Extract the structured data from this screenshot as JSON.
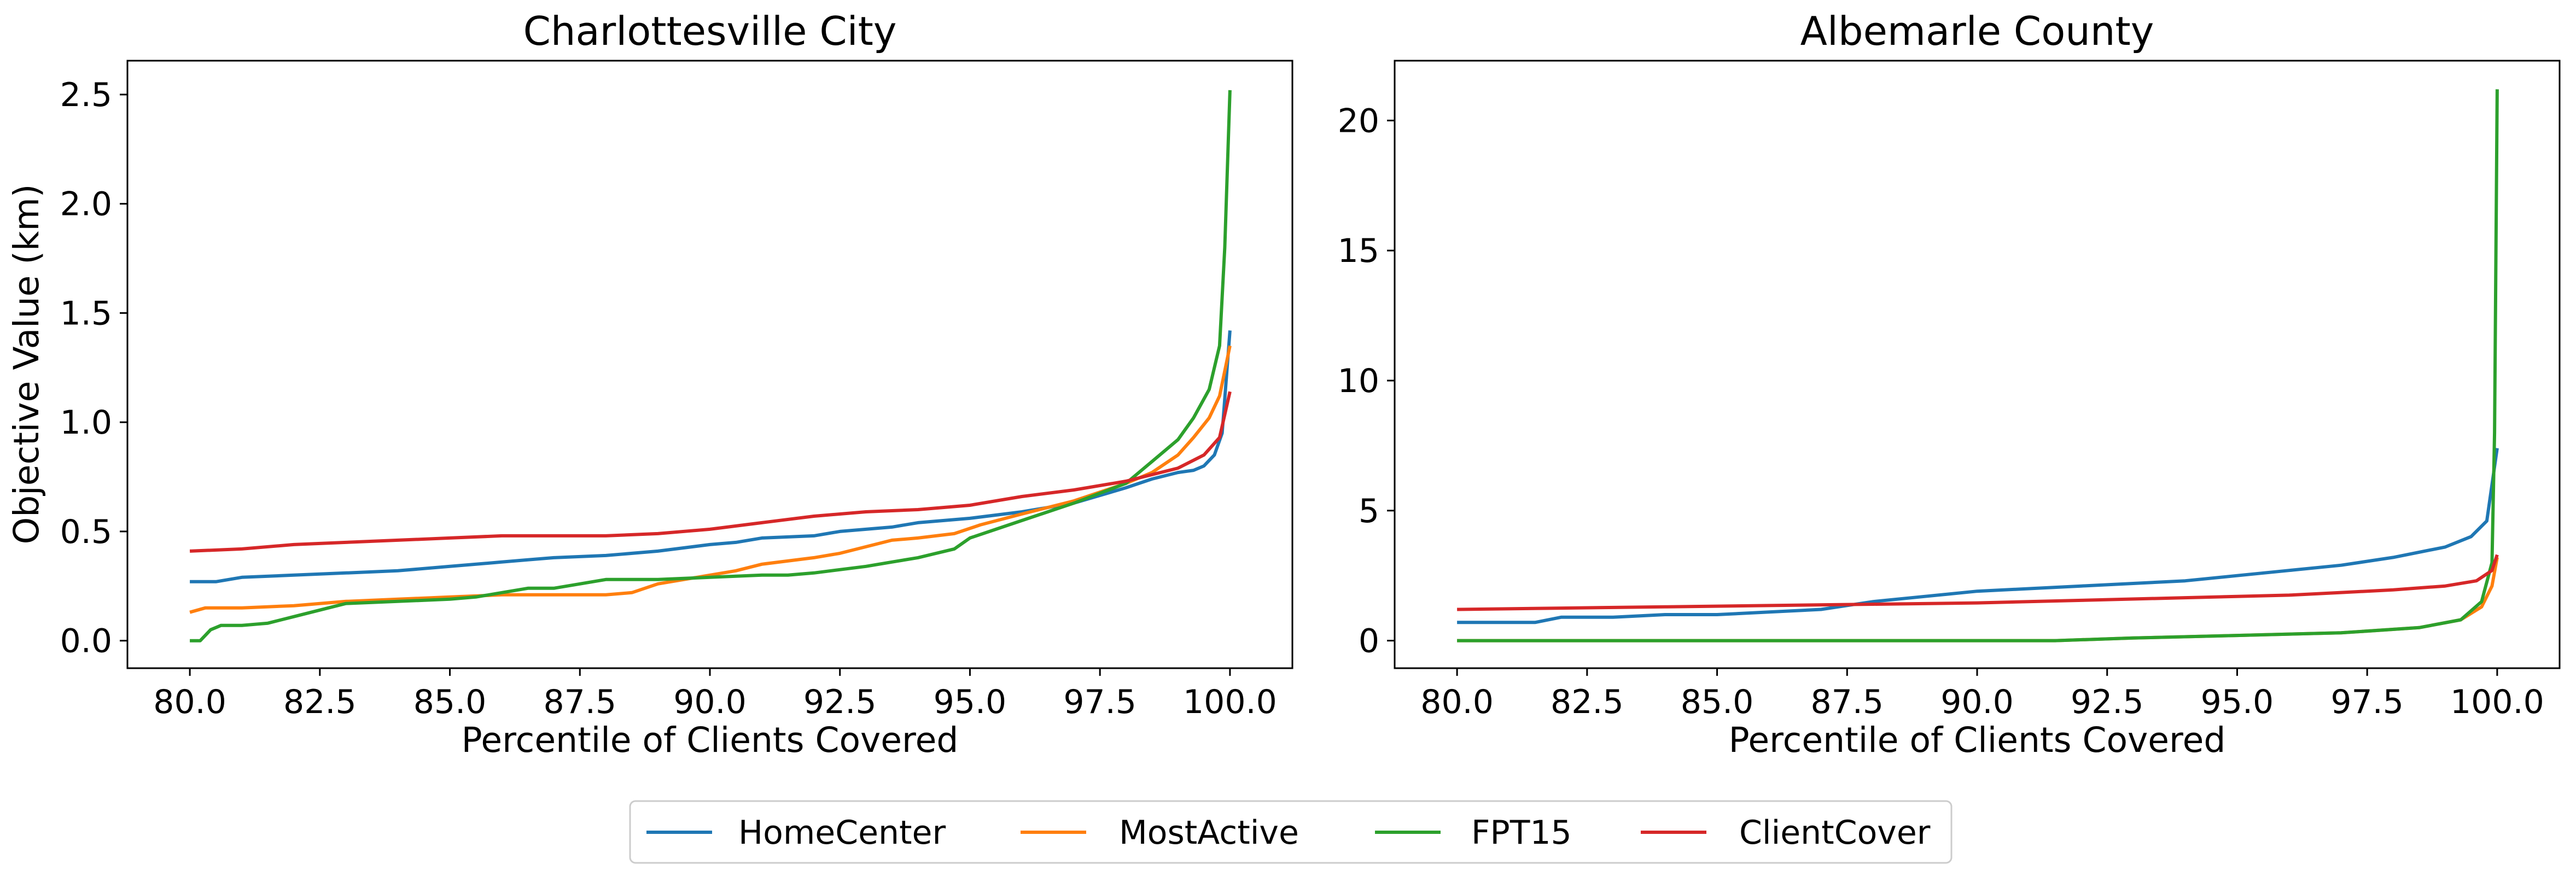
{
  "chart_data": [
    {
      "type": "line",
      "title": "Charlottesville City",
      "xlabel": "Percentile of Clients Covered",
      "ylabel": "Objective Value (km)",
      "xlim": [
        78.8,
        101.2
      ],
      "ylim": [
        -0.126,
        2.655
      ],
      "xticks": [
        80.0,
        82.5,
        85.0,
        87.5,
        90.0,
        92.5,
        95.0,
        97.5,
        100.0
      ],
      "xtick_labels": [
        "80.0",
        "82.5",
        "85.0",
        "87.5",
        "90.0",
        "92.5",
        "95.0",
        "97.5",
        "100.0"
      ],
      "yticks": [
        0.0,
        0.5,
        1.0,
        1.5,
        2.0,
        2.5
      ],
      "ytick_labels": [
        "0.0",
        "0.5",
        "1.0",
        "1.5",
        "2.0",
        "2.5"
      ],
      "grid": false,
      "series": [
        {
          "name": "HomeCenter",
          "color": "#1f77b4",
          "x": [
            80,
            80.5,
            81,
            82,
            83,
            84,
            85,
            86,
            86.5,
            87,
            88,
            89,
            90,
            90.5,
            91,
            92,
            92.5,
            93,
            93.5,
            94,
            95,
            96,
            97,
            98,
            98.5,
            99,
            99.3,
            99.5,
            99.7,
            99.85,
            100
          ],
          "y": [
            0.27,
            0.27,
            0.29,
            0.3,
            0.31,
            0.32,
            0.34,
            0.36,
            0.37,
            0.38,
            0.39,
            0.41,
            0.44,
            0.45,
            0.47,
            0.48,
            0.5,
            0.51,
            0.52,
            0.54,
            0.56,
            0.59,
            0.63,
            0.7,
            0.74,
            0.77,
            0.78,
            0.8,
            0.85,
            0.95,
            1.42
          ]
        },
        {
          "name": "MostActive",
          "color": "#ff7f0e",
          "x": [
            80,
            80.3,
            81,
            82,
            82.5,
            83,
            84,
            85,
            86,
            87,
            88,
            88.5,
            89,
            90,
            90.5,
            91,
            92,
            92.5,
            93,
            93.5,
            94,
            94.7,
            95.2,
            96,
            97,
            98,
            98.5,
            99,
            99.3,
            99.6,
            99.8,
            100
          ],
          "y": [
            0.13,
            0.15,
            0.15,
            0.16,
            0.17,
            0.18,
            0.19,
            0.2,
            0.21,
            0.21,
            0.21,
            0.22,
            0.26,
            0.3,
            0.32,
            0.35,
            0.38,
            0.4,
            0.43,
            0.46,
            0.47,
            0.49,
            0.53,
            0.58,
            0.64,
            0.72,
            0.77,
            0.85,
            0.93,
            1.02,
            1.12,
            1.35
          ]
        },
        {
          "name": "FPT15",
          "color": "#2ca02c",
          "x": [
            80,
            80.2,
            80.4,
            80.6,
            81,
            81.5,
            82,
            82.5,
            83,
            84,
            85,
            85.5,
            86,
            86.5,
            87,
            88,
            89,
            90,
            91,
            91.5,
            92,
            93,
            93.5,
            94,
            94.7,
            95,
            95.5,
            96,
            97,
            98,
            98.5,
            99,
            99.3,
            99.6,
            99.8,
            99.9,
            100
          ],
          "y": [
            0.0,
            0.0,
            0.05,
            0.07,
            0.07,
            0.08,
            0.11,
            0.14,
            0.17,
            0.18,
            0.19,
            0.2,
            0.22,
            0.24,
            0.24,
            0.28,
            0.28,
            0.29,
            0.3,
            0.3,
            0.31,
            0.34,
            0.36,
            0.38,
            0.42,
            0.47,
            0.51,
            0.55,
            0.63,
            0.72,
            0.82,
            0.92,
            1.02,
            1.15,
            1.35,
            1.8,
            2.52
          ]
        },
        {
          "name": "ClientCover",
          "color": "#d62728",
          "x": [
            80,
            81,
            82,
            83,
            84,
            85,
            86,
            87,
            88,
            89,
            90,
            91,
            92,
            93,
            94,
            95,
            96,
            97,
            98,
            99,
            99.5,
            99.8,
            100
          ],
          "y": [
            0.41,
            0.42,
            0.44,
            0.45,
            0.46,
            0.47,
            0.48,
            0.48,
            0.48,
            0.49,
            0.51,
            0.54,
            0.57,
            0.59,
            0.6,
            0.62,
            0.66,
            0.69,
            0.73,
            0.79,
            0.85,
            0.93,
            1.14
          ]
        }
      ]
    },
    {
      "type": "line",
      "title": "Albemarle County",
      "xlabel": "Percentile of Clients Covered",
      "ylabel": "",
      "xlim": [
        78.8,
        101.2
      ],
      "ylim": [
        -1.06,
        22.3
      ],
      "xticks": [
        80.0,
        82.5,
        85.0,
        87.5,
        90.0,
        92.5,
        95.0,
        97.5,
        100.0
      ],
      "xtick_labels": [
        "80.0",
        "82.5",
        "85.0",
        "87.5",
        "90.0",
        "92.5",
        "95.0",
        "97.5",
        "100.0"
      ],
      "yticks": [
        0,
        5,
        10,
        15,
        20
      ],
      "ytick_labels": [
        "0",
        "5",
        "10",
        "15",
        "20"
      ],
      "grid": false,
      "series": [
        {
          "name": "HomeCenter",
          "color": "#1f77b4",
          "x": [
            80,
            81.5,
            82,
            83,
            84,
            85,
            86,
            87,
            88,
            89,
            90,
            91,
            92,
            93,
            94,
            95,
            96,
            97,
            98,
            99,
            99.5,
            99.8,
            100
          ],
          "y": [
            0.7,
            0.7,
            0.9,
            0.9,
            1.0,
            1.0,
            1.1,
            1.2,
            1.5,
            1.7,
            1.9,
            2.0,
            2.1,
            2.2,
            2.3,
            2.5,
            2.7,
            2.9,
            3.2,
            3.6,
            4.0,
            4.6,
            7.4
          ]
        },
        {
          "name": "MostActive",
          "color": "#ff7f0e",
          "x": [
            80,
            85,
            90,
            91.5,
            93,
            95,
            97,
            98.5,
            99.3,
            99.7,
            99.9,
            100
          ],
          "y": [
            0.0,
            0.0,
            0.0,
            0.0,
            0.1,
            0.2,
            0.3,
            0.5,
            0.8,
            1.3,
            2.1,
            3.2
          ]
        },
        {
          "name": "FPT15",
          "color": "#2ca02c",
          "x": [
            80,
            85,
            90,
            91.5,
            93,
            95,
            97,
            98.5,
            99.3,
            99.7,
            99.9,
            99.95,
            100
          ],
          "y": [
            0.0,
            0.0,
            0.0,
            0.0,
            0.1,
            0.2,
            0.3,
            0.5,
            0.8,
            1.5,
            3.0,
            8.0,
            21.2
          ]
        },
        {
          "name": "ClientCover",
          "color": "#d62728",
          "x": [
            80,
            82,
            84,
            86,
            88,
            90,
            92,
            94,
            95,
            96,
            97,
            98,
            99,
            99.6,
            99.9,
            100
          ],
          "y": [
            1.2,
            1.25,
            1.3,
            1.35,
            1.4,
            1.45,
            1.55,
            1.65,
            1.7,
            1.75,
            1.85,
            1.95,
            2.1,
            2.3,
            2.7,
            3.3
          ]
        }
      ]
    }
  ],
  "legend": {
    "placement": "bottom-center",
    "entries": [
      {
        "label": "HomeCenter",
        "color": "#1f77b4"
      },
      {
        "label": "MostActive",
        "color": "#ff7f0e"
      },
      {
        "label": "FPT15",
        "color": "#2ca02c"
      },
      {
        "label": "ClientCover",
        "color": "#d62728"
      }
    ]
  }
}
